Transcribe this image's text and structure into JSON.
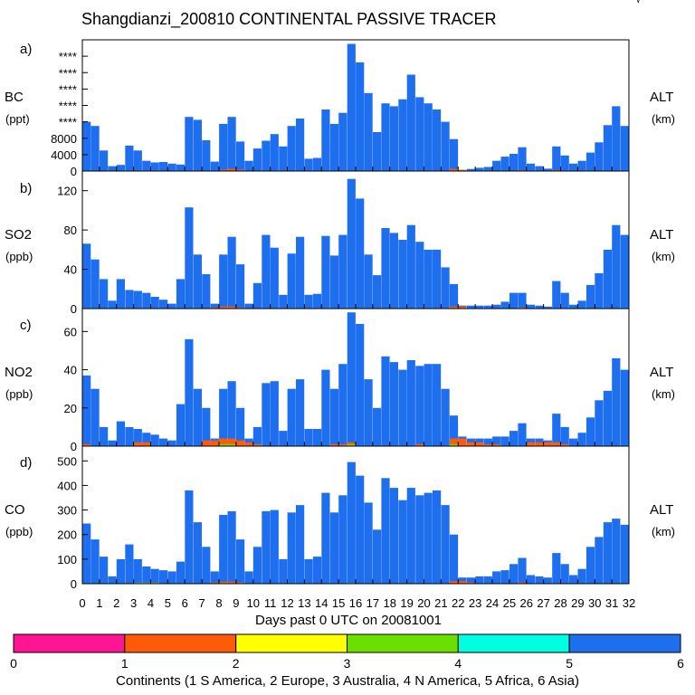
{
  "figure": {
    "title": "Shangdianzi_200810 CONTINENTAL PASSIVE TRACER",
    "corner_mark": "√",
    "xlabel": "Days past 0 UTC on 20081001",
    "x_ticks": [
      "0",
      "1",
      "2",
      "3",
      "4",
      "5",
      "6",
      "7",
      "8",
      "9",
      "10",
      "11",
      "12",
      "13",
      "14",
      "15",
      "16",
      "17",
      "18",
      "19",
      "20",
      "21",
      "22",
      "23",
      "24",
      "25",
      "26",
      "27",
      "28",
      "29",
      "30",
      "31",
      "32"
    ]
  },
  "colorbar": {
    "label": "Continents (1 S America, 2 Europe, 3 Australia, 4 N America, 5 Africa, 6 Asia)",
    "ticks": [
      "0",
      "1",
      "2",
      "3",
      "4",
      "5",
      "6"
    ],
    "colors": [
      "#ff1493",
      "#ff5a0a",
      "#ffff00",
      "#6be000",
      "#00ffe0",
      "#1e6ff0"
    ]
  },
  "panels": [
    {
      "letter": "a)",
      "species": "BC",
      "unit": "(ppt)",
      "right_label": "ALT",
      "right_unit": "(km)",
      "y_ticks": [
        "****",
        "****",
        "****",
        "****",
        "****",
        "8000",
        "4000",
        "0"
      ]
    },
    {
      "letter": "b)",
      "species": "SO2",
      "unit": "(ppb)",
      "right_label": "ALT",
      "right_unit": "(km)",
      "y_ticks": [
        "120",
        "80",
        "40",
        "0"
      ]
    },
    {
      "letter": "c)",
      "species": "NO2",
      "unit": "(ppb)",
      "right_label": "ALT",
      "right_unit": "(km)",
      "y_ticks": [
        "60",
        "40",
        "20",
        "0"
      ]
    },
    {
      "letter": "d)",
      "species": "CO",
      "unit": "(ppb)",
      "right_label": "ALT",
      "right_unit": "(km)",
      "y_ticks": [
        "500",
        "400",
        "300",
        "200",
        "100",
        "0"
      ]
    }
  ],
  "chart_data": [
    {
      "type": "bar",
      "id": "bc",
      "title": "a) BC",
      "xlabel": "Days past 0 UTC on 20081001",
      "ylabel": "BC (ppt)",
      "xlim": [
        0,
        32
      ],
      "ylim": [
        0,
        32000
      ],
      "y_tick_values": [
        28000,
        24000,
        20000,
        16000,
        12000,
        8000,
        4000,
        0
      ],
      "y_tick_labels": [
        "****",
        "****",
        "****",
        "****",
        "****",
        "8000",
        "4000",
        "0"
      ],
      "series": [
        {
          "name": "Asia (6)",
          "color": "#1e6ff0",
          "x": [
            0.25,
            0.75,
            1.25,
            1.75,
            2.25,
            2.75,
            3.25,
            3.75,
            4.25,
            4.75,
            5.25,
            5.75,
            6.25,
            6.75,
            7.25,
            7.75,
            8.25,
            8.75,
            9.25,
            9.75,
            10.25,
            10.75,
            11.25,
            11.75,
            12.25,
            12.75,
            13.25,
            13.75,
            14.25,
            14.75,
            15.25,
            15.75,
            16.25,
            16.75,
            17.25,
            17.75,
            18.25,
            18.75,
            19.25,
            19.75,
            20.25,
            20.75,
            21.25,
            21.75,
            22.25,
            22.75,
            23.25,
            23.75,
            24.25,
            24.75,
            25.25,
            25.75,
            26.25,
            26.75,
            27.25,
            27.75,
            28.25,
            28.75,
            29.25,
            29.75,
            30.25,
            30.75,
            31.25,
            31.75
          ],
          "values": [
            12000,
            11000,
            5000,
            1200,
            1500,
            6200,
            5000,
            2500,
            2100,
            2200,
            1800,
            1600,
            13200,
            12500,
            7500,
            2300,
            11500,
            13200,
            7200,
            2500,
            5500,
            7400,
            9000,
            6000,
            11000,
            12800,
            3000,
            3200,
            15000,
            11500,
            14200,
            31000,
            26500,
            19000,
            9500,
            16500,
            15800,
            17500,
            23500,
            18000,
            16500,
            15000,
            12000,
            7800,
            200,
            500,
            800,
            1000,
            2500,
            3500,
            4200,
            5800,
            1800,
            1200,
            600,
            6000,
            3800,
            1800,
            2500,
            4500,
            7000,
            11200,
            15800,
            11000
          ]
        },
        {
          "name": "Europe (2)",
          "color": "#ff5a0a",
          "x": [
            8.25,
            8.75,
            9.25,
            21.75,
            22.25,
            25.75,
            27.75
          ],
          "values": [
            300,
            500,
            300,
            500,
            300,
            200,
            200
          ]
        }
      ]
    },
    {
      "type": "bar",
      "id": "so2",
      "title": "b) SO2",
      "xlabel": "Days past 0 UTC on 20081001",
      "ylabel": "SO2 (ppb)",
      "xlim": [
        0,
        32
      ],
      "ylim": [
        0,
        140
      ],
      "y_tick_values": [
        120,
        80,
        40,
        0
      ],
      "series": [
        {
          "name": "Asia (6)",
          "color": "#1e6ff0",
          "x": [
            0.25,
            0.75,
            1.25,
            1.75,
            2.25,
            2.75,
            3.25,
            3.75,
            4.25,
            4.75,
            5.25,
            5.75,
            6.25,
            6.75,
            7.25,
            7.75,
            8.25,
            8.75,
            9.25,
            9.75,
            10.25,
            10.75,
            11.25,
            11.75,
            12.25,
            12.75,
            13.25,
            13.75,
            14.25,
            14.75,
            15.25,
            15.75,
            16.25,
            16.75,
            17.25,
            17.75,
            18.25,
            18.75,
            19.25,
            19.75,
            20.25,
            20.75,
            21.25,
            21.75,
            22.25,
            22.75,
            23.25,
            23.75,
            24.25,
            24.75,
            25.25,
            25.75,
            26.25,
            26.75,
            27.25,
            27.75,
            28.25,
            28.75,
            29.25,
            29.75,
            30.25,
            30.75,
            31.25,
            31.75
          ],
          "values": [
            66,
            50,
            30,
            8,
            30,
            19,
            18,
            16,
            12,
            9,
            5,
            30,
            103,
            55,
            35,
            5,
            55,
            73,
            45,
            5,
            26,
            75,
            62,
            14,
            56,
            73,
            14,
            15,
            74,
            54,
            75,
            132,
            112,
            55,
            34,
            82,
            77,
            70,
            85,
            68,
            60,
            60,
            42,
            25,
            3,
            3,
            3,
            3,
            4,
            7,
            16,
            16,
            4,
            3,
            2,
            28,
            16,
            4,
            8,
            24,
            36,
            60,
            85,
            75
          ]
        },
        {
          "name": "Europe (2)",
          "color": "#ff5a0a",
          "x": [
            7.75,
            8.25,
            8.75,
            9.25,
            21.75,
            22.25,
            25.75
          ],
          "values": [
            1,
            2,
            2,
            1,
            2,
            2,
            1
          ]
        }
      ]
    },
    {
      "type": "bar",
      "id": "no2",
      "title": "c) NO2",
      "xlabel": "Days past 0 UTC on 20081001",
      "ylabel": "NO2 (ppb)",
      "xlim": [
        0,
        32
      ],
      "ylim": [
        0,
        72
      ],
      "y_tick_values": [
        60,
        40,
        20,
        0
      ],
      "series": [
        {
          "name": "Asia (6)",
          "color": "#1e6ff0",
          "x": [
            0.25,
            0.75,
            1.25,
            1.75,
            2.25,
            2.75,
            3.25,
            3.75,
            4.25,
            4.75,
            5.25,
            5.75,
            6.25,
            6.75,
            7.25,
            7.75,
            8.25,
            8.75,
            9.25,
            9.75,
            10.25,
            10.75,
            11.25,
            11.75,
            12.25,
            12.75,
            13.25,
            13.75,
            14.25,
            14.75,
            15.25,
            15.75,
            16.25,
            16.75,
            17.25,
            17.75,
            18.25,
            18.75,
            19.25,
            19.75,
            20.25,
            20.75,
            21.25,
            21.75,
            22.25,
            22.75,
            23.25,
            23.75,
            24.25,
            24.75,
            25.25,
            25.75,
            26.25,
            26.75,
            27.25,
            27.75,
            28.25,
            28.75,
            29.25,
            29.75,
            30.25,
            30.75,
            31.25,
            31.75
          ],
          "values": [
            37,
            30,
            10,
            3,
            13,
            10,
            9,
            7,
            6,
            4,
            3,
            22,
            56,
            30,
            20,
            4,
            30,
            34,
            20,
            4,
            10,
            33,
            34,
            8,
            30,
            35,
            9,
            9,
            40,
            30,
            43,
            70,
            64,
            35,
            20,
            47,
            44,
            40,
            45,
            42,
            43,
            43,
            30,
            16,
            5,
            4,
            4,
            4,
            5,
            5,
            8,
            12,
            4,
            4,
            3,
            17,
            10,
            4,
            7,
            15,
            24,
            29,
            46,
            40
          ]
        },
        {
          "name": "Europe (2)",
          "color": "#ff5a0a",
          "x": [
            0.25,
            3.25,
            3.75,
            7.25,
            7.75,
            8.25,
            8.75,
            9.25,
            9.75,
            10.25,
            14.75,
            15.25,
            15.75,
            19.75,
            21.75,
            22.25,
            22.75,
            23.25,
            23.75,
            24.25,
            26.25,
            26.75,
            27.25,
            27.75,
            28.25
          ],
          "values": [
            1,
            2,
            2,
            3,
            3,
            4,
            4,
            3,
            2,
            1,
            1,
            1,
            2,
            1,
            4,
            4,
            2,
            2,
            1,
            1,
            2,
            2,
            2,
            2,
            1
          ]
        },
        {
          "name": "N America (4)",
          "color": "#6be000",
          "x": [
            8.25,
            8.75,
            15.75,
            21.75
          ],
          "values": [
            1,
            1,
            1,
            1
          ]
        }
      ]
    },
    {
      "type": "bar",
      "id": "co",
      "title": "d) CO",
      "xlabel": "Days past 0 UTC on 20081001",
      "ylabel": "CO (ppb)",
      "xlim": [
        0,
        32
      ],
      "ylim": [
        0,
        560
      ],
      "y_tick_values": [
        500,
        400,
        300,
        200,
        100,
        0
      ],
      "series": [
        {
          "name": "Asia (6)",
          "color": "#1e6ff0",
          "x": [
            0.25,
            0.75,
            1.25,
            1.75,
            2.25,
            2.75,
            3.25,
            3.75,
            4.25,
            4.75,
            5.25,
            5.75,
            6.25,
            6.75,
            7.25,
            7.75,
            8.25,
            8.75,
            9.25,
            9.75,
            10.25,
            10.75,
            11.25,
            11.75,
            12.25,
            12.75,
            13.25,
            13.75,
            14.25,
            14.75,
            15.25,
            15.75,
            16.25,
            16.75,
            17.25,
            17.75,
            18.25,
            18.75,
            19.25,
            19.75,
            20.25,
            20.75,
            21.25,
            21.75,
            22.25,
            22.75,
            23.25,
            23.75,
            24.25,
            24.75,
            25.25,
            25.75,
            26.25,
            26.75,
            27.25,
            27.75,
            28.25,
            28.75,
            29.25,
            29.75,
            30.25,
            30.75,
            31.25,
            31.75
          ],
          "values": [
            245,
            180,
            110,
            30,
            100,
            160,
            100,
            70,
            60,
            55,
            50,
            90,
            380,
            250,
            150,
            50,
            280,
            295,
            180,
            50,
            150,
            295,
            300,
            100,
            290,
            320,
            100,
            110,
            370,
            290,
            360,
            495,
            440,
            330,
            220,
            430,
            390,
            340,
            390,
            360,
            370,
            380,
            320,
            200,
            25,
            25,
            30,
            30,
            50,
            55,
            80,
            105,
            35,
            30,
            25,
            125,
            80,
            35,
            60,
            150,
            190,
            250,
            265,
            240
          ]
        },
        {
          "name": "Europe (2)",
          "color": "#ff5a0a",
          "x": [
            7.75,
            8.25,
            8.75,
            9.25,
            21.75,
            22.25,
            22.75,
            25.75
          ],
          "values": [
            5,
            8,
            8,
            5,
            10,
            10,
            5,
            5
          ]
        },
        {
          "name": "N America (4)",
          "color": "#6be000",
          "x": [
            3.25,
            3.75,
            4.25,
            8.25,
            15.75
          ],
          "values": [
            4,
            4,
            4,
            3,
            3
          ]
        }
      ]
    }
  ]
}
